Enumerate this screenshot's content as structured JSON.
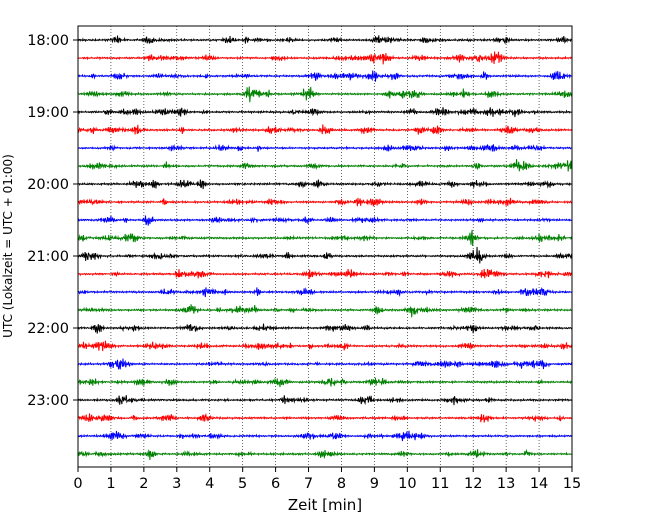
{
  "chart_data": {
    "type": "line",
    "title": "",
    "xlabel": "Zeit  [min]",
    "ylabel": "UTC (Lokalzeit = UTC + 01:00)",
    "xlim": [
      0,
      15
    ],
    "xticks": [
      0,
      1,
      2,
      3,
      4,
      5,
      6,
      7,
      8,
      9,
      10,
      11,
      12,
      13,
      14,
      15
    ],
    "yticks": [
      {
        "label": "18:00",
        "row": 0
      },
      {
        "label": "19:00",
        "row": 4
      },
      {
        "label": "20:00",
        "row": 8
      },
      {
        "label": "21:00",
        "row": 12
      },
      {
        "label": "22:00",
        "row": 16
      },
      {
        "label": "23:00",
        "row": 20
      }
    ],
    "grid": {
      "x": true,
      "y": false,
      "style": "dotted"
    },
    "trace_colors": [
      "#000000",
      "#ff0000",
      "#0000ff",
      "#008000"
    ],
    "row_minutes": 15,
    "series": [
      {
        "start": "18:00"
      },
      {
        "start": "18:15"
      },
      {
        "start": "18:30"
      },
      {
        "start": "18:45"
      },
      {
        "start": "19:00"
      },
      {
        "start": "19:15"
      },
      {
        "start": "19:30"
      },
      {
        "start": "19:45"
      },
      {
        "start": "20:00"
      },
      {
        "start": "20:15"
      },
      {
        "start": "20:30"
      },
      {
        "start": "20:45"
      },
      {
        "start": "21:00"
      },
      {
        "start": "21:15"
      },
      {
        "start": "21:30"
      },
      {
        "start": "21:45"
      },
      {
        "start": "22:00"
      },
      {
        "start": "22:15"
      },
      {
        "start": "22:30"
      },
      {
        "start": "22:45"
      },
      {
        "start": "23:00"
      },
      {
        "start": "23:15"
      },
      {
        "start": "23:30"
      },
      {
        "start": "23:45"
      }
    ]
  }
}
